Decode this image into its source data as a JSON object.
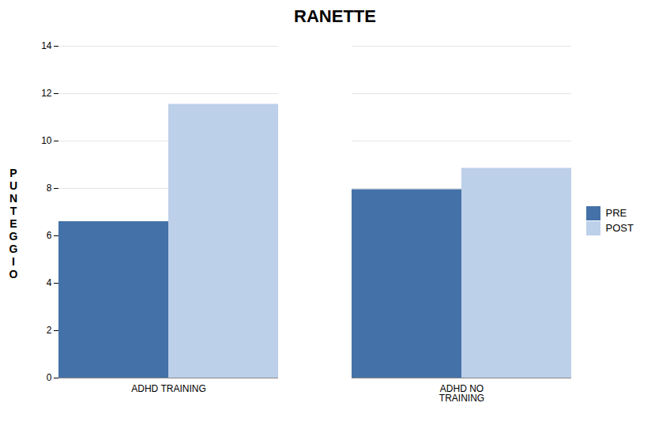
{
  "chart_data": {
    "type": "bar",
    "title": "RANETTE",
    "ylabel": "PUNTEGGIO",
    "categories": [
      "ADHD TRAINING",
      "ADHD NO\nTRAINING"
    ],
    "series": [
      {
        "name": "PRE",
        "color": "#4472A8",
        "values": [
          6.6,
          7.95
        ]
      },
      {
        "name": "POST",
        "color": "#BDD0E9",
        "values": [
          11.55,
          8.85
        ]
      }
    ],
    "ylim": [
      0,
      14
    ],
    "yticks": [
      0,
      2,
      4,
      6,
      8,
      10,
      12,
      14
    ],
    "grid": true,
    "legend": "right"
  }
}
